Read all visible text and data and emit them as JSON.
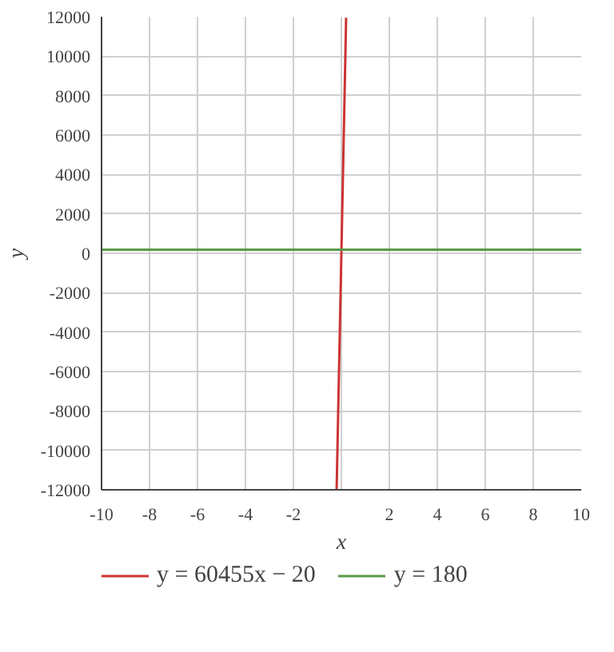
{
  "chart_data": {
    "type": "line",
    "xlabel": "x",
    "ylabel": "y",
    "xlim": [
      -10,
      10
    ],
    "ylim": [
      -12000,
      12000
    ],
    "xticks": [
      -10,
      -8,
      -6,
      -4,
      -2,
      {
        "value": 0,
        "label": null
      },
      2,
      4,
      6,
      8,
      10
    ],
    "yticks": [
      -12000,
      -10000,
      -8000,
      -6000,
      -4000,
      -2000,
      0,
      2000,
      4000,
      6000,
      8000,
      10000,
      12000
    ],
    "grid": true,
    "legend": "bottom",
    "marker": "none",
    "line_style": "solid",
    "series": [
      {
        "name": "y = 60455x − 20",
        "color": "#cc3333",
        "x": [
          -0.198,
          0.198
        ],
        "values": [
          -11990,
          11950
        ]
      },
      {
        "name": "y = 180",
        "color": "#5a9a4a",
        "x": [
          -10,
          10
        ],
        "values": [
          180,
          180
        ]
      }
    ]
  }
}
